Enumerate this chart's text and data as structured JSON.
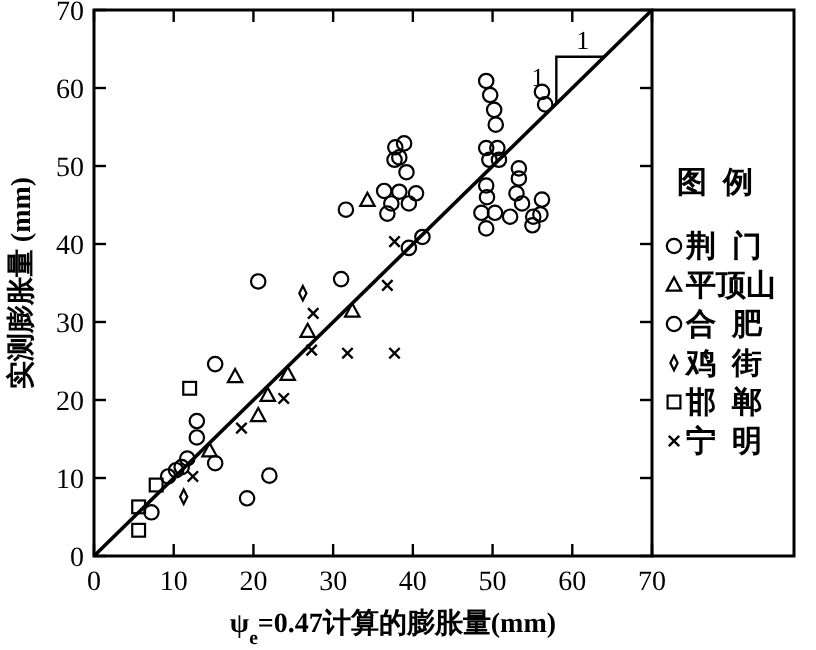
{
  "chart_data": {
    "type": "scatter",
    "xlabel": "ψ$_{e}$=0.47计算的膨胀量(mm)",
    "ylabel": "实测膨胀量 (mm)",
    "legend_title": "图例",
    "legend": "right",
    "grid": false,
    "xlim": [
      0,
      70
    ],
    "ylim": [
      0,
      70
    ],
    "xticks": [
      0,
      10,
      20,
      30,
      40,
      50,
      60,
      70
    ],
    "yticks": [
      0,
      10,
      20,
      30,
      40,
      50,
      60,
      70
    ],
    "annotations": [
      "1",
      "1"
    ],
    "series": [
      {
        "name": "荆门",
        "color": "#000000",
        "marker": "circle",
        "x": [
          15.2,
          15.2,
          19.2,
          22,
          11.7,
          20.6,
          31,
          31.6,
          36.4,
          36.8,
          37.3,
          37.7,
          37.8,
          38.9,
          38.3,
          39.2,
          38.3,
          40.4,
          39.5,
          41.2,
          49.2,
          49.7,
          50.2,
          50.4,
          49.2,
          50.6,
          49.6,
          50.8,
          49.2,
          49.3,
          48.6,
          50.3,
          49.2,
          52.2,
          53.3,
          53.3,
          53,
          53.7,
          55.1,
          56.2,
          56,
          55,
          56.2,
          56.6
        ],
        "values": [
          11.9,
          24.6,
          7.4,
          10.3,
          12.5,
          35.2,
          35.5,
          44.4,
          46.8,
          43.9,
          45.2,
          50.8,
          52.4,
          52.9,
          51.1,
          49.2,
          46.7,
          46.5,
          45.2,
          40.9,
          60.9,
          59.1,
          57.2,
          55.3,
          52.3,
          52.3,
          50.8,
          50.8,
          47.5,
          46,
          44,
          44,
          42,
          43.5,
          49.7,
          48.4,
          46.5,
          45.2,
          43.5,
          45.7,
          43.8,
          42.4,
          59.5,
          57.9
        ]
      },
      {
        "name": "平顶山",
        "color": "#000000",
        "marker": "triangle",
        "x": [
          14.5,
          17.7,
          20.6,
          21.8,
          24.3,
          26.8,
          32.4,
          34.3
        ],
        "values": [
          13.5,
          23,
          18,
          20.6,
          23.3,
          28.8,
          31.4,
          45.6
        ]
      },
      {
        "name": "合肥",
        "color": "#000000",
        "marker": "circle",
        "x": [
          12.9,
          12.9,
          7.2,
          9.3,
          10.3,
          11,
          39.5
        ],
        "values": [
          17.3,
          15.2,
          5.6,
          10.2,
          11,
          11.4,
          39.5
        ]
      },
      {
        "name": "鸡街",
        "color": "#000000",
        "marker": "diamond",
        "x": [
          11.25,
          26.2
        ],
        "values": [
          7.6,
          33.7
        ]
      },
      {
        "name": "邯郸",
        "color": "#000000",
        "marker": "square",
        "x": [
          12,
          7.8,
          5.6,
          5.6
        ],
        "values": [
          21.5,
          9.1,
          6.3,
          3.3
        ]
      },
      {
        "name": "宁明",
        "color": "#000000",
        "marker": "cross",
        "x": [
          12.4,
          18.5,
          23.8,
          27.3,
          31.8,
          37.7,
          27.5,
          36.8,
          37.7
        ],
        "values": [
          10.2,
          16.4,
          20.2,
          26.4,
          26,
          26,
          31.1,
          34.7,
          40.3
        ]
      },
      {
        "type": "line",
        "color": "#000000",
        "marker": "none",
        "x": [
          0,
          70
        ],
        "values": [
          0,
          70
        ]
      }
    ]
  }
}
